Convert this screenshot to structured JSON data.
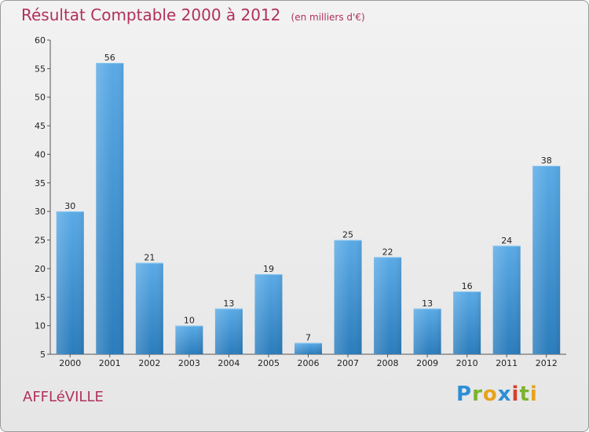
{
  "header": {
    "title": "Résultat Comptable 2000 à 2012",
    "subtitle": "(en milliers d'€)"
  },
  "footer": {
    "place": "AFFLéVILLE",
    "logo_letters": [
      "P",
      "r",
      "o",
      "x",
      "i",
      "t",
      "i"
    ],
    "logo_colors": [
      "#2d8fd6",
      "#7ab42d",
      "#e8a21b",
      "#2d8fd6",
      "#d6402d",
      "#7ab42d",
      "#e8a21b"
    ]
  },
  "colors": {
    "bar_light": "#5aaae6",
    "bar_dark": "#2a7cbc",
    "title": "#b0305e"
  },
  "chart_data": {
    "type": "bar",
    "title": "Résultat Comptable 2000 à 2012",
    "subtitle": "(en milliers d'€)",
    "xlabel": "",
    "ylabel": "",
    "categories": [
      "2000",
      "2001",
      "2002",
      "2003",
      "2004",
      "2005",
      "2006",
      "2007",
      "2008",
      "2009",
      "2010",
      "2011",
      "2012"
    ],
    "values": [
      30,
      56,
      21,
      10,
      13,
      19,
      7,
      25,
      22,
      13,
      16,
      24,
      38
    ],
    "ylim": [
      5,
      60
    ],
    "yticks": [
      5,
      10,
      15,
      20,
      25,
      30,
      35,
      40,
      45,
      50,
      55,
      60
    ],
    "grid": false
  }
}
